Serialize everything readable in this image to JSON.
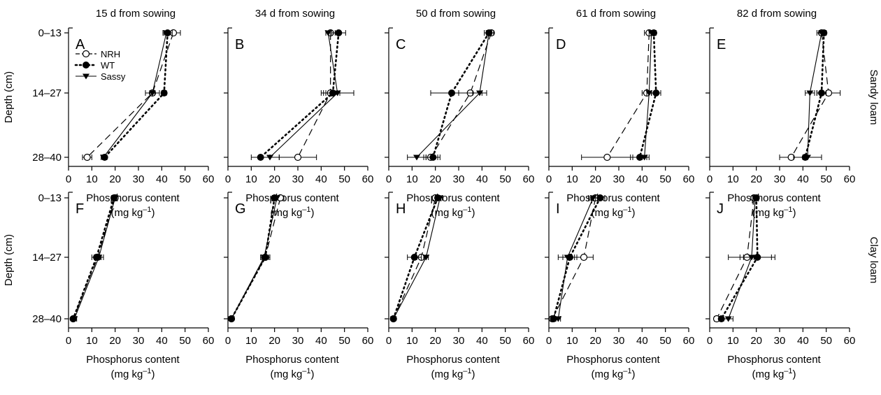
{
  "chart_data": {
    "type": "line",
    "column_titles": [
      "15 d from sowing",
      "34 d from sowing",
      "50 d from sowing",
      "61 d from sowing",
      "82 d from sowing"
    ],
    "row_labels": [
      "Sandy loam",
      "Clay loam"
    ],
    "ylabel": "Depth (cm)",
    "xlabel_line1": "Phosphorus content",
    "xlabel_line2_text": "(mg kg",
    "xlabel_line2_sup": "–1",
    "xlabel_line2_close": ")",
    "x_ticks": [
      "0",
      "10",
      "20",
      "30",
      "40",
      "50",
      "60"
    ],
    "xlim": [
      0,
      60
    ],
    "depth_categories": [
      "0–13",
      "14–27",
      "28–40"
    ],
    "legend": [
      "NRH",
      "WT",
      "Sassy"
    ],
    "series_style": {
      "NRH": {
        "line": "dashed",
        "marker": "open-circle"
      },
      "WT": {
        "line": "dotted",
        "marker": "filled-circle"
      },
      "Sassy": {
        "line": "solid",
        "marker": "filled-triangle-down"
      }
    },
    "panels": [
      {
        "letter": "A",
        "soil": "Sandy loam",
        "days": "15 d from sowing",
        "series": [
          {
            "name": "NRH",
            "values": [
              45,
              36,
              8
            ],
            "errors": [
              3,
              3,
              2
            ]
          },
          {
            "name": "WT",
            "values": [
              42.5,
              41,
              15.5
            ],
            "errors": [
              2,
              1,
              1
            ]
          },
          {
            "name": "Sassy",
            "values": [
              42,
              36,
              15
            ],
            "errors": [
              1,
              1,
              1
            ]
          }
        ]
      },
      {
        "letter": "B",
        "soil": "Sandy loam",
        "days": "34 d from sowing",
        "series": [
          {
            "name": "NRH",
            "values": [
              44,
              44,
              30
            ],
            "errors": [
              2,
              3,
              8
            ]
          },
          {
            "name": "WT",
            "values": [
              47.5,
              45,
              14
            ],
            "errors": [
              3,
              3,
              4
            ]
          },
          {
            "name": "Sassy",
            "values": [
              43,
              47,
              18
            ],
            "errors": [
              1,
              7,
              4
            ]
          }
        ]
      },
      {
        "letter": "C",
        "soil": "Sandy loam",
        "days": "50 d from sowing",
        "series": [
          {
            "name": "NRH",
            "values": [
              44,
              35,
              18
            ],
            "errors": [
              1,
              5,
              3
            ]
          },
          {
            "name": "WT",
            "values": [
              43,
              27,
              19
            ],
            "errors": [
              2,
              9,
              3
            ]
          },
          {
            "name": "Sassy",
            "values": [
              43,
              39,
              12
            ],
            "errors": [
              1,
              3,
              4
            ]
          }
        ]
      },
      {
        "letter": "D",
        "soil": "Sandy loam",
        "days": "61 d from sowing",
        "series": [
          {
            "name": "NRH",
            "values": [
              43,
              42,
              25
            ],
            "errors": [
              2,
              2,
              11
            ]
          },
          {
            "name": "WT",
            "values": [
              45,
              46,
              39
            ],
            "errors": [
              1,
              2,
              4
            ]
          },
          {
            "name": "Sassy",
            "values": [
              44,
              43,
              41
            ],
            "errors": [
              1,
              1,
              1
            ]
          }
        ]
      },
      {
        "letter": "E",
        "soil": "Sandy loam",
        "days": "82 d from sowing",
        "series": [
          {
            "name": "NRH",
            "values": [
              48,
              51,
              35
            ],
            "errors": [
              2,
              5,
              5
            ]
          },
          {
            "name": "WT",
            "values": [
              49,
              48,
              41
            ],
            "errors": [
              1,
              2,
              1
            ]
          },
          {
            "name": "Sassy",
            "values": [
              48,
              43,
              42
            ],
            "errors": [
              1,
              2,
              6
            ]
          }
        ]
      },
      {
        "letter": "F",
        "soil": "Clay loam",
        "days": "15 d from sowing",
        "series": [
          {
            "name": "NRH",
            "values": [
              20,
              12.5,
              2
            ],
            "errors": [
              1,
              1,
              0.5
            ]
          },
          {
            "name": "WT",
            "values": [
              19.5,
              12,
              2
            ],
            "errors": [
              1,
              2,
              0.5
            ]
          },
          {
            "name": "Sassy",
            "values": [
              20,
              13,
              2.5
            ],
            "errors": [
              0.5,
              2,
              1
            ]
          }
        ]
      },
      {
        "letter": "G",
        "soil": "Clay loam",
        "days": "34 d from sowing",
        "series": [
          {
            "name": "NRH",
            "values": [
              22.5,
              16,
              1.5
            ],
            "errors": [
              1.5,
              1.5,
              0.5
            ]
          },
          {
            "name": "WT",
            "values": [
              20,
              16,
              1.5
            ],
            "errors": [
              1,
              2,
              0.5
            ]
          },
          {
            "name": "Sassy",
            "values": [
              21,
              15.5,
              1.5
            ],
            "errors": [
              0.5,
              1,
              0.5
            ]
          }
        ]
      },
      {
        "letter": "H",
        "soil": "Clay loam",
        "days": "50 d from sowing",
        "series": [
          {
            "name": "NRH",
            "values": [
              20,
              14,
              2
            ],
            "errors": [
              1,
              2,
              0.5
            ]
          },
          {
            "name": "WT",
            "values": [
              21,
              11,
              2
            ],
            "errors": [
              1,
              3,
              0.5
            ]
          },
          {
            "name": "Sassy",
            "values": [
              22,
              16,
              2
            ],
            "errors": [
              1,
              1,
              0.5
            ]
          }
        ]
      },
      {
        "letter": "I",
        "soil": "Clay loam",
        "days": "61 d from sowing",
        "series": [
          {
            "name": "NRH",
            "values": [
              20,
              15,
              1.5
            ],
            "errors": [
              2,
              4,
              1
            ]
          },
          {
            "name": "WT",
            "values": [
              22,
              9,
              2
            ],
            "errors": [
              2,
              3,
              1
            ]
          },
          {
            "name": "Sassy",
            "values": [
              19,
              8,
              4
            ],
            "errors": [
              2,
              4,
              1
            ]
          }
        ]
      },
      {
        "letter": "J",
        "soil": "Clay loam",
        "days": "82 d from sowing",
        "series": [
          {
            "name": "NRH",
            "values": [
              19,
              16,
              3
            ],
            "errors": [
              1,
              3,
              1
            ]
          },
          {
            "name": "WT",
            "values": [
              20,
              20.5,
              5
            ],
            "errors": [
              1,
              6,
              1
            ]
          },
          {
            "name": "Sassy",
            "values": [
              19.5,
              18,
              8
            ],
            "errors": [
              1,
              10,
              2
            ]
          }
        ]
      }
    ]
  }
}
